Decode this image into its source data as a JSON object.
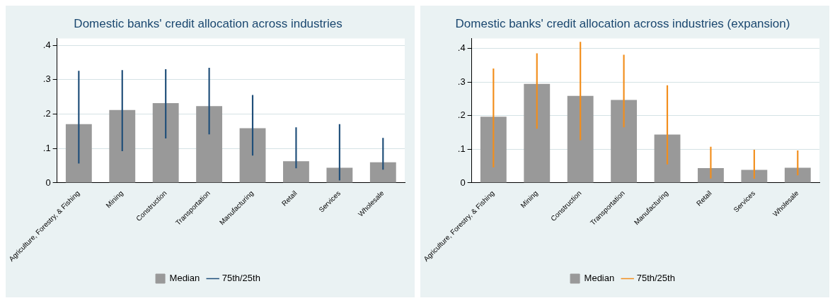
{
  "chart_data": [
    {
      "type": "bar",
      "title": "Domestic banks' credit allocation across industries",
      "categories": [
        "Agriculture, Forestry, & Fishing",
        "Mining",
        "Construction",
        "Transportation",
        "Manufacturing",
        "Retail",
        "Services",
        "Wholesale"
      ],
      "series": [
        {
          "name": "Median",
          "color": "#999999",
          "values": [
            0.171,
            0.212,
            0.232,
            0.223,
            0.159,
            0.063,
            0.044,
            0.06
          ]
        },
        {
          "name": "75th/25th",
          "color": "#1f4e79",
          "base": [
            0.057,
            0.093,
            0.13,
            0.142,
            0.08,
            0.043,
            0.008,
            0.039
          ],
          "values": [
            0.268,
            0.234,
            0.2,
            0.192,
            0.175,
            0.118,
            0.162,
            0.091
          ]
        }
      ],
      "ylim": [
        0,
        0.42
      ],
      "yticks": [
        0,
        {
          "value": 0.1,
          "label": ".1"
        },
        {
          "value": 0.2,
          "label": ".2"
        },
        {
          "value": 0.3,
          "label": ".3"
        },
        {
          "value": 0.4,
          "label": ".4"
        }
      ],
      "grid": "y",
      "legend": "bottom"
    },
    {
      "type": "bar",
      "title": "Domestic banks' credit allocation across industries (expansion)",
      "categories": [
        "Agriculture, Forestry, & Fishing",
        "Mining",
        "Construction",
        "Transportation",
        "Manufacturing",
        "Retail",
        "Services",
        "Wholesale"
      ],
      "series": [
        {
          "name": "Median",
          "color": "#999999",
          "values": [
            0.197,
            0.295,
            0.259,
            0.247,
            0.144,
            0.044,
            0.039,
            0.045
          ]
        },
        {
          "name": "75th/25th",
          "color": "#f28e1c",
          "base": [
            0.047,
            0.162,
            0.128,
            0.166,
            0.056,
            0.014,
            0.013,
            0.023
          ],
          "values": [
            0.293,
            0.223,
            0.291,
            0.215,
            0.234,
            0.093,
            0.085,
            0.073
          ]
        }
      ],
      "ylim": [
        0,
        0.43
      ],
      "yticks": [
        0,
        {
          "value": 0.1,
          "label": ".1"
        },
        {
          "value": 0.2,
          "label": ".2"
        },
        {
          "value": 0.3,
          "label": ".3"
        },
        {
          "value": 0.4,
          "label": ".4"
        }
      ],
      "grid": "y",
      "legend": "bottom"
    }
  ]
}
